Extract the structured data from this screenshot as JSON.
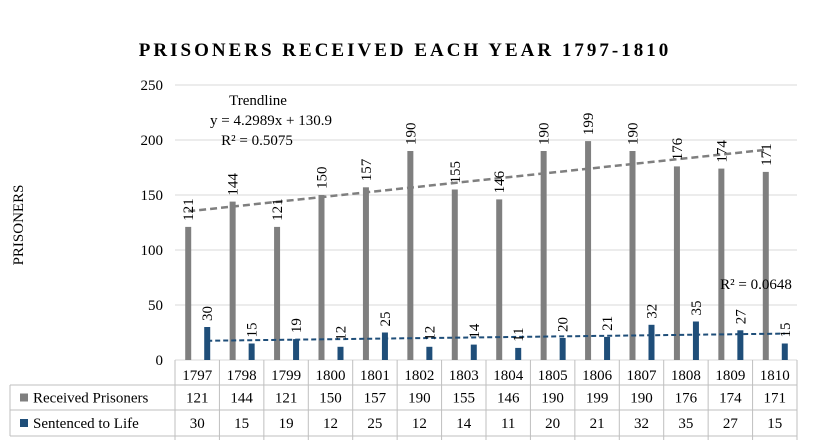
{
  "chart_data": {
    "type": "bar",
    "title": "PRISONERS RECEIVED EACH YEAR 1797-1810",
    "ylabel": "PRISONERS",
    "xlabel": "",
    "ylim": [
      0,
      250
    ],
    "yticks": [
      "0",
      "50",
      "100",
      "150",
      "200",
      "250"
    ],
    "grid": true,
    "categories": [
      "1797",
      "1798",
      "1799",
      "1800",
      "1801",
      "1802",
      "1803",
      "1804",
      "1805",
      "1806",
      "1807",
      "1808",
      "1809",
      "1810"
    ],
    "series": [
      {
        "name": "Received Prisoners",
        "color": "#7f7f7f",
        "values": [
          121,
          144,
          121,
          150,
          157,
          190,
          155,
          146,
          190,
          199,
          190,
          176,
          174,
          171
        ]
      },
      {
        "name": "Sentenced to Life",
        "color": "#1f4e79",
        "values": [
          30,
          15,
          19,
          12,
          25,
          12,
          14,
          11,
          20,
          21,
          32,
          35,
          27,
          15
        ]
      }
    ],
    "trendlines": [
      {
        "series": "Received Prisoners",
        "title": "Trendline",
        "equation": "y = 4.2989x + 130.9",
        "r2": "R² = 0.5075",
        "slope": 4.2989,
        "intercept": 130.9,
        "color": "#7f7f7f"
      },
      {
        "series": "Sentenced to Life",
        "r2": "R² = 0.0648",
        "start": 17.5,
        "end": 24,
        "color": "#1f4e79"
      }
    ],
    "data_table": true
  }
}
